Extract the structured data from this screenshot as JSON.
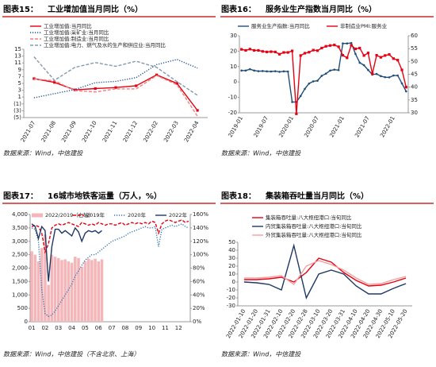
{
  "chart_data": [
    {
      "type": "line",
      "figure_label": "图表15：",
      "title": "工业增加值当月同比（%）",
      "source": "数据来源：Wind，中信建投",
      "categories": [
        "2021-07",
        "2021-08",
        "2021-09",
        "2021-10",
        "2021-11",
        "2021-12",
        "2022-02",
        "2022-03",
        "2022-04"
      ],
      "ylim": [
        -5,
        15
      ],
      "yticks": [
        15,
        13,
        11,
        9,
        7,
        5,
        3,
        1,
        {
          "value": -1,
          "label": "(1)"
        },
        {
          "value": -3,
          "label": "(3)"
        },
        {
          "value": -5,
          "label": "(5)"
        }
      ],
      "series": [
        {
          "name": "工业增加值:当月同比",
          "color": "#e60012",
          "style": "solid",
          "marker": "square",
          "values": [
            6.4,
            5.3,
            3.1,
            3.5,
            3.8,
            4.3,
            7.5,
            5.0,
            -2.9
          ]
        },
        {
          "name": "工业增加值:采矿业:当月同比",
          "color": "#1f4e9a",
          "style": "dotted",
          "values": [
            0.8,
            2.0,
            3.2,
            5.2,
            5.6,
            6.7,
            10.5,
            12.0,
            9.5
          ]
        },
        {
          "name": "工业增加值:制造业:当月同比",
          "color": "#f08080",
          "style": "dashed",
          "values": [
            6.3,
            5.8,
            2.9,
            2.5,
            3.4,
            3.4,
            7.3,
            4.6,
            -4.6
          ]
        },
        {
          "name": "工业增加值:电力、燃气及水的生产和供应业:当月同比",
          "color": "#8497b0",
          "style": "dashed",
          "values": [
            12.8,
            5.9,
            9.7,
            11.1,
            10.0,
            11.5,
            9.7,
            5.5,
            1.5
          ]
        }
      ]
    },
    {
      "type": "line",
      "figure_label": "图表16：",
      "title": "服务业生产指数当月同比（%）",
      "source": "数据来源：Wind，中信建投",
      "categories": [
        "2019-01",
        null,
        null,
        null,
        null,
        null,
        "2019-07",
        null,
        null,
        null,
        null,
        null,
        "2020-01",
        null,
        null,
        null,
        null,
        null,
        "2020-07",
        null,
        null,
        null,
        null,
        null,
        "2021-01",
        null,
        null,
        null,
        null,
        null,
        "2021-07",
        null,
        null,
        null,
        null,
        null,
        "2022-01",
        null,
        null,
        null
      ],
      "ylim": [
        -20,
        30
      ],
      "yticks": [
        30,
        20,
        10,
        0,
        -10,
        -20
      ],
      "y2lim": [
        30,
        60
      ],
      "y2ticks": [
        60,
        55,
        50,
        45,
        40,
        35,
        30
      ],
      "series": [
        {
          "name": "服务业生产指数:当月同比",
          "color": "#1f4e79",
          "style": "solid",
          "marker": "circle",
          "values": [
            7.4,
            7.4,
            8.3,
            7.4,
            7.0,
            7.1,
            6.9,
            6.8,
            7.0,
            6.6,
            6.9,
            6.8,
            -13,
            -13,
            -9.1,
            -4.5,
            -1.0,
            0.4,
            0.8,
            4.0,
            5.4,
            7.4,
            8.0,
            7.7,
            25,
            25,
            25.3,
            18.2,
            12.5,
            10.9,
            7.8,
            4.8,
            5.2,
            3.8,
            3.1,
            3.0,
            4.2,
            4.2,
            -0.9,
            -6.1
          ]
        },
        {
          "name": "非制造业PMI:服务业",
          "color": "#e60012",
          "style": "solid",
          "marker": "square",
          "axis": "y2",
          "values": [
            54.7,
            54.3,
            54.8,
            54.3,
            54.3,
            53.9,
            53.7,
            53.8,
            53.7,
            52.8,
            53.5,
            53.5,
            54.1,
            29.6,
            52.3,
            53.2,
            53.6,
            54.4,
            54.2,
            55.2,
            55.9,
            56.2,
            56.4,
            55.7,
            52.4,
            51.4,
            56.3,
            54.9,
            55.2,
            52.3,
            53.3,
            45.2,
            52.4,
            51.6,
            52.3,
            52.7,
            51.1,
            50.5,
            46.7,
            40.0
          ]
        }
      ]
    },
    {
      "type": "combo",
      "figure_label": "图表17：",
      "title": "16城市地铁客运量（万人，%）",
      "source": "数据来源：Wind，中信建投（不含北京、上海）",
      "categories": [
        "01",
        null,
        null,
        null,
        "02",
        null,
        null,
        null,
        "03",
        null,
        null,
        null,
        "04",
        null,
        null,
        null,
        "05",
        null,
        null,
        null,
        "06",
        null,
        null,
        null,
        "07",
        null,
        null,
        null,
        "08",
        null,
        null,
        null,
        "09",
        null,
        null,
        null,
        "10",
        null,
        null,
        null,
        "11",
        null,
        null,
        null,
        "12",
        null,
        null,
        null
      ],
      "ylim": [
        0,
        4000
      ],
      "yticks": [
        {
          "value": 4000,
          "label": "4,000"
        },
        {
          "value": 3500,
          "label": "3,500"
        },
        {
          "value": 3000,
          "label": "3,000"
        },
        {
          "value": 2500,
          "label": "2,500"
        },
        {
          "value": 2000,
          "label": "2,000"
        },
        {
          "value": 1500,
          "label": "1,500"
        },
        {
          "value": 1000,
          "label": "1,000"
        },
        {
          "value": 500,
          "label": "500"
        },
        0
      ],
      "y2lim": [
        0,
        160
      ],
      "y2ticks": [
        {
          "value": 160,
          "label": "160%"
        },
        {
          "value": 140,
          "label": "140%"
        },
        {
          "value": 120,
          "label": "120%"
        },
        {
          "value": 100,
          "label": "100%"
        },
        {
          "value": 80,
          "label": "80%"
        },
        {
          "value": 60,
          "label": "60%"
        },
        {
          "value": 40,
          "label": "40%"
        },
        {
          "value": 20,
          "label": "20%"
        },
        {
          "value": 0,
          "label": "0%"
        }
      ],
      "series": [
        {
          "name": "2022/2019（右轴）",
          "color": "#f4b6b8",
          "kind": "bar",
          "axis": "y2",
          "values": [
            105,
            100,
            90,
            110,
            130,
            55,
            100,
            97,
            95,
            92,
            93,
            90,
            88,
            97,
            95,
            82,
            90,
            94,
            92,
            94,
            90,
            93,
            null,
            null,
            null,
            null,
            null,
            null,
            null,
            null,
            null,
            null,
            null,
            null,
            null,
            null,
            null,
            null,
            null,
            null,
            null,
            null,
            null,
            null,
            null,
            null,
            null,
            null
          ]
        },
        {
          "name": "2019年",
          "color": "#e60012",
          "style": "dashed",
          "values": [
            3550,
            3600,
            3550,
            3300,
            2600,
            2900,
            3500,
            3600,
            3650,
            3600,
            3650,
            3700,
            3650,
            3600,
            3550,
            3700,
            3650,
            3600,
            3650,
            3600,
            3700,
            3650,
            3600,
            3650,
            3650,
            3600,
            3650,
            3700,
            3600,
            3650,
            3700,
            3650,
            3700,
            3650,
            3700,
            3650,
            3750,
            3700,
            3300,
            3650,
            3750,
            3800,
            3750,
            3700,
            3750,
            3800,
            3700,
            3750
          ]
        },
        {
          "name": "2020年",
          "color": "#2e75b6",
          "style": "dotted",
          "values": [
            3500,
            3450,
            3000,
            1200,
            300,
            200,
            250,
            400,
            600,
            800,
            1000,
            1200,
            1400,
            1700,
            1900,
            2100,
            2300,
            2400,
            2500,
            2500,
            2600,
            2700,
            2800,
            2900,
            3000,
            3050,
            3100,
            3150,
            3200,
            3300,
            3350,
            3400,
            3450,
            3500,
            3550,
            3500,
            3500,
            3550,
            2800,
            3450,
            3500,
            3550,
            3600,
            3550,
            3600,
            3650,
            3550,
            3500
          ]
        },
        {
          "name": "2022年",
          "color": "#1f3864",
          "style": "solid",
          "values": [
            3650,
            3550,
            3100,
            3550,
            3400,
            1500,
            2800,
            3450,
            3450,
            3300,
            3400,
            3300,
            3200,
            3500,
            3350,
            3000,
            3300,
            3400,
            3350,
            3400,
            3300,
            3400,
            null,
            null,
            null,
            null,
            null,
            null,
            null,
            null,
            null,
            null,
            null,
            null,
            null,
            null,
            null,
            null,
            null,
            null,
            null,
            null,
            null,
            null,
            null,
            null,
            null,
            null
          ]
        }
      ]
    },
    {
      "type": "line",
      "figure_label": "图表18：",
      "title": "集装箱吞吐量当月同比（%）",
      "source": "数据来源：Wind，中信建投",
      "categories": [
        "2022-01-10",
        "2022-01-20",
        "2022-01-31",
        "2022-02-10",
        "2022-02-20",
        "2022-02-28",
        "2022-03-10",
        "2022-03-20",
        "2022-03-31",
        "2022-04-10",
        "2022-04-20",
        "2022-04-30",
        "2022-05-10",
        "2022-05-20"
      ],
      "ylim": [
        -30,
        50
      ],
      "yticks": [
        50,
        40,
        30,
        20,
        10,
        0,
        -10,
        -20,
        -30
      ],
      "series": [
        {
          "name": "集装箱吞吐量:八大枢纽港口:当旬同比",
          "color": "#e60012",
          "style": "solid",
          "values": [
            3,
            3,
            4,
            6,
            0,
            12,
            30,
            25,
            12,
            2,
            -5,
            -4,
            0,
            5
          ]
        },
        {
          "name": "内贸集装箱吞吐量:八大枢纽港口:当旬同比",
          "color": "#1f3864",
          "style": "solid",
          "values": [
            0,
            -1,
            -3,
            -10,
            46,
            -20,
            10,
            15,
            10,
            -5,
            -15,
            -15,
            -8,
            -2
          ]
        },
        {
          "name": "外贸集装箱吞吐量:八大枢纽港口:当旬同比",
          "color": "#f4a0a0",
          "style": "solid",
          "values": [
            5,
            5,
            6,
            8,
            -3,
            20,
            27,
            22,
            15,
            5,
            -3,
            -2,
            3,
            7
          ]
        }
      ]
    }
  ]
}
